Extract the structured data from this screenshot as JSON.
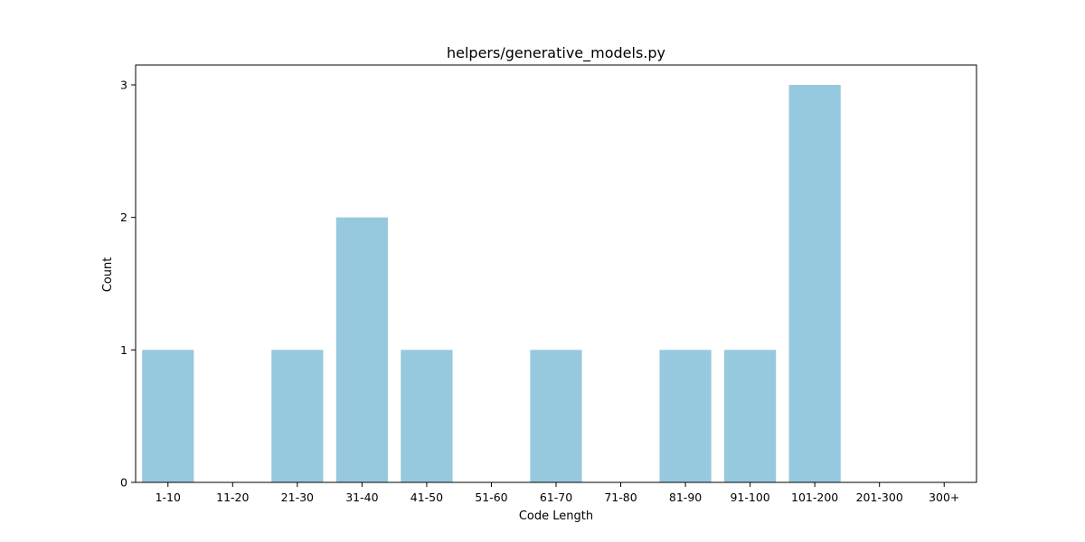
{
  "chart_data": {
    "type": "bar",
    "title": "helpers/generative_models.py",
    "xlabel": "Code Length",
    "ylabel": "Count",
    "categories": [
      "1-10",
      "11-20",
      "21-30",
      "31-40",
      "41-50",
      "51-60",
      "61-70",
      "71-80",
      "81-90",
      "91-100",
      "101-200",
      "201-300",
      "300+"
    ],
    "values": [
      1,
      0,
      1,
      2,
      1,
      0,
      1,
      0,
      1,
      1,
      3,
      0,
      0
    ],
    "ylim": [
      0,
      3.15
    ],
    "yticks": [
      0,
      1,
      2,
      3
    ],
    "grid": false,
    "bar_color": "#96c9de"
  }
}
